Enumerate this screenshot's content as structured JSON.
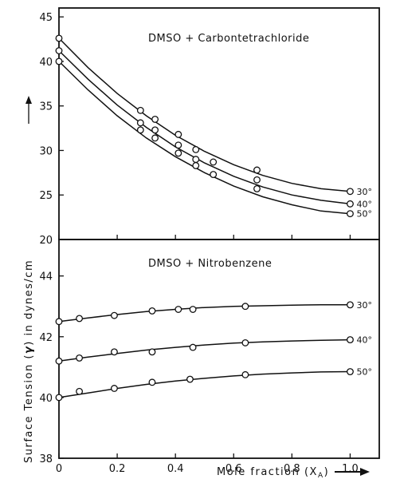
{
  "chart_data": [
    {
      "type": "line",
      "title": "DMSO + Carbontetrachloride",
      "xlabel": "Mole fraction (X_A)",
      "ylabel": "Surface Tension (γ) in dynes/cm",
      "xlim": [
        0,
        1.1
      ],
      "ylim": [
        20,
        46
      ],
      "yticks": [
        "20",
        "25",
        "30",
        "35",
        "40",
        "45"
      ],
      "series": [
        {
          "name": "30°",
          "points": [
            [
              0.0,
              42.6
            ],
            [
              0.28,
              34.5
            ],
            [
              0.33,
              33.5
            ],
            [
              0.41,
              31.8
            ],
            [
              0.47,
              30.1
            ],
            [
              0.68,
              27.8
            ],
            [
              1.0,
              25.4
            ]
          ],
          "curve": [
            [
              0.0,
              42.6
            ],
            [
              0.1,
              39.3
            ],
            [
              0.2,
              36.4
            ],
            [
              0.3,
              33.9
            ],
            [
              0.4,
              31.7
            ],
            [
              0.5,
              29.9
            ],
            [
              0.6,
              28.4
            ],
            [
              0.7,
              27.2
            ],
            [
              0.8,
              26.3
            ],
            [
              0.9,
              25.7
            ],
            [
              1.0,
              25.4
            ]
          ]
        },
        {
          "name": "40°",
          "points": [
            [
              0.0,
              41.2
            ],
            [
              0.28,
              33.1
            ],
            [
              0.33,
              32.3
            ],
            [
              0.41,
              30.6
            ],
            [
              0.47,
              29.0
            ],
            [
              0.53,
              28.7
            ],
            [
              0.68,
              26.7
            ],
            [
              1.0,
              24.0
            ]
          ],
          "curve": [
            [
              0.0,
              41.2
            ],
            [
              0.1,
              38.0
            ],
            [
              0.2,
              35.1
            ],
            [
              0.3,
              32.6
            ],
            [
              0.4,
              30.4
            ],
            [
              0.5,
              28.6
            ],
            [
              0.6,
              27.1
            ],
            [
              0.7,
              25.9
            ],
            [
              0.8,
              25.0
            ],
            [
              0.9,
              24.4
            ],
            [
              1.0,
              24.0
            ]
          ]
        },
        {
          "name": "50°",
          "points": [
            [
              0.0,
              40.0
            ],
            [
              0.28,
              32.3
            ],
            [
              0.33,
              31.4
            ],
            [
              0.41,
              29.7
            ],
            [
              0.47,
              28.3
            ],
            [
              0.53,
              27.3
            ],
            [
              0.68,
              25.7
            ],
            [
              1.0,
              22.9
            ]
          ],
          "curve": [
            [
              0.0,
              40.0
            ],
            [
              0.1,
              36.8
            ],
            [
              0.2,
              33.9
            ],
            [
              0.3,
              31.4
            ],
            [
              0.4,
              29.3
            ],
            [
              0.5,
              27.5
            ],
            [
              0.6,
              26.0
            ],
            [
              0.7,
              24.8
            ],
            [
              0.8,
              23.9
            ],
            [
              0.9,
              23.2
            ],
            [
              1.0,
              22.9
            ]
          ]
        }
      ]
    },
    {
      "type": "line",
      "title": "DMSO + Nitrobenzene",
      "xlabel": "Mole fraction (X_A)",
      "ylabel": "Surface Tension (γ) in dynes/cm",
      "xlim": [
        0,
        1.1
      ],
      "ylim": [
        38,
        45.2
      ],
      "xticks": [
        "0",
        "0.2",
        "0.4",
        "0.6",
        "0.8",
        "1.0"
      ],
      "yticks": [
        "38",
        "40",
        "42",
        "44"
      ],
      "series": [
        {
          "name": "30°",
          "points": [
            [
              0.0,
              42.5
            ],
            [
              0.07,
              42.6
            ],
            [
              0.19,
              42.7
            ],
            [
              0.32,
              42.85
            ],
            [
              0.41,
              42.9
            ],
            [
              0.46,
              42.9
            ],
            [
              0.64,
              43.0
            ],
            [
              1.0,
              43.05
            ]
          ],
          "curve": [
            [
              0.0,
              42.5
            ],
            [
              0.1,
              42.62
            ],
            [
              0.2,
              42.73
            ],
            [
              0.3,
              42.83
            ],
            [
              0.4,
              42.9
            ],
            [
              0.5,
              42.96
            ],
            [
              0.6,
              43.0
            ],
            [
              0.7,
              43.02
            ],
            [
              0.8,
              43.04
            ],
            [
              0.9,
              43.05
            ],
            [
              1.0,
              43.05
            ]
          ]
        },
        {
          "name": "40°",
          "points": [
            [
              0.0,
              41.2
            ],
            [
              0.07,
              41.3
            ],
            [
              0.19,
              41.5
            ],
            [
              0.32,
              41.5
            ],
            [
              0.46,
              41.65
            ],
            [
              0.64,
              41.8
            ],
            [
              1.0,
              41.9
            ]
          ],
          "curve": [
            [
              0.0,
              41.2
            ],
            [
              0.1,
              41.33
            ],
            [
              0.2,
              41.45
            ],
            [
              0.3,
              41.56
            ],
            [
              0.4,
              41.65
            ],
            [
              0.5,
              41.73
            ],
            [
              0.6,
              41.79
            ],
            [
              0.7,
              41.83
            ],
            [
              0.8,
              41.86
            ],
            [
              0.9,
              41.88
            ],
            [
              1.0,
              41.9
            ]
          ]
        },
        {
          "name": "50°",
          "points": [
            [
              0.0,
              40.0
            ],
            [
              0.07,
              40.2
            ],
            [
              0.19,
              40.3
            ],
            [
              0.32,
              40.5
            ],
            [
              0.45,
              40.6
            ],
            [
              0.64,
              40.75
            ],
            [
              1.0,
              40.85
            ]
          ],
          "curve": [
            [
              0.0,
              40.0
            ],
            [
              0.1,
              40.15
            ],
            [
              0.2,
              40.3
            ],
            [
              0.3,
              40.43
            ],
            [
              0.4,
              40.54
            ],
            [
              0.5,
              40.63
            ],
            [
              0.6,
              40.71
            ],
            [
              0.7,
              40.77
            ],
            [
              0.8,
              40.81
            ],
            [
              0.9,
              40.84
            ],
            [
              1.0,
              40.85
            ]
          ]
        }
      ]
    }
  ],
  "labels": {
    "top_title": "DMSO + Carbontetrachloride",
    "bottom_title": "DMSO + Nitrobenzene",
    "y_title_part1": "Surface Tension (",
    "y_title_symbol": "γ",
    "y_title_part2": ") in dynes/cm",
    "x_title_part1": "Mole fraction (X",
    "x_title_sub": "A",
    "x_title_part2": ")"
  }
}
